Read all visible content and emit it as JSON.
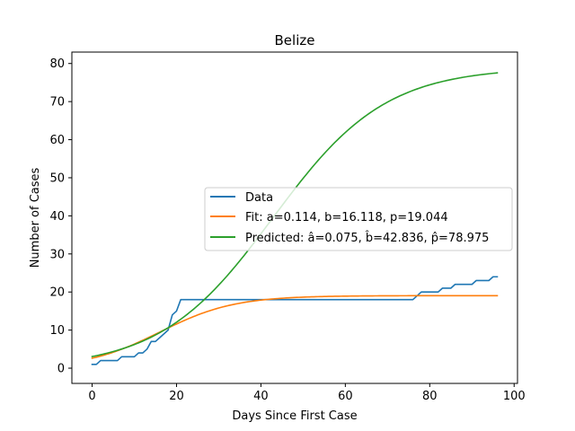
{
  "chart_data": {
    "type": "line",
    "title": "Belize",
    "xlabel": "Days Since First Case",
    "ylabel": "Number of Cases",
    "xlim": [
      -4.8,
      100.8
    ],
    "ylim": [
      -4.0,
      83.0
    ],
    "xticks": [
      0,
      20,
      40,
      60,
      80,
      100
    ],
    "yticks": [
      0,
      10,
      20,
      30,
      40,
      50,
      60,
      70,
      80
    ],
    "grid": false,
    "legend_position": "center-right",
    "series": [
      {
        "name": "Data",
        "color": "#1f77b4",
        "kind": "steps",
        "points": [
          [
            0,
            1
          ],
          [
            1,
            1
          ],
          [
            2,
            2
          ],
          [
            6,
            2
          ],
          [
            7,
            3
          ],
          [
            10,
            3
          ],
          [
            11,
            4
          ],
          [
            12,
            4
          ],
          [
            13,
            5
          ],
          [
            14,
            7
          ],
          [
            15,
            7
          ],
          [
            16,
            8
          ],
          [
            18,
            10
          ],
          [
            19,
            14
          ],
          [
            20,
            15
          ],
          [
            21,
            18
          ],
          [
            76,
            18
          ],
          [
            78,
            20
          ],
          [
            82,
            20
          ],
          [
            83,
            21
          ],
          [
            85,
            21
          ],
          [
            86,
            22
          ],
          [
            90,
            22
          ],
          [
            91,
            23
          ],
          [
            94,
            23
          ],
          [
            95,
            24
          ],
          [
            96,
            24
          ]
        ]
      },
      {
        "name": "Fit: a=0.114, b=16.118, p=19.044",
        "color": "#ff7f0e",
        "kind": "logistic",
        "a": 0.114,
        "b": 16.118,
        "p": 19.044,
        "x_range": [
          0,
          96
        ]
      },
      {
        "name": "Predicted: â=0.075, b̂=42.836, p̂=78.975",
        "color": "#2ca02c",
        "kind": "logistic",
        "a": 0.075,
        "b": 42.836,
        "p": 78.975,
        "x_range": [
          0,
          96
        ]
      }
    ]
  }
}
